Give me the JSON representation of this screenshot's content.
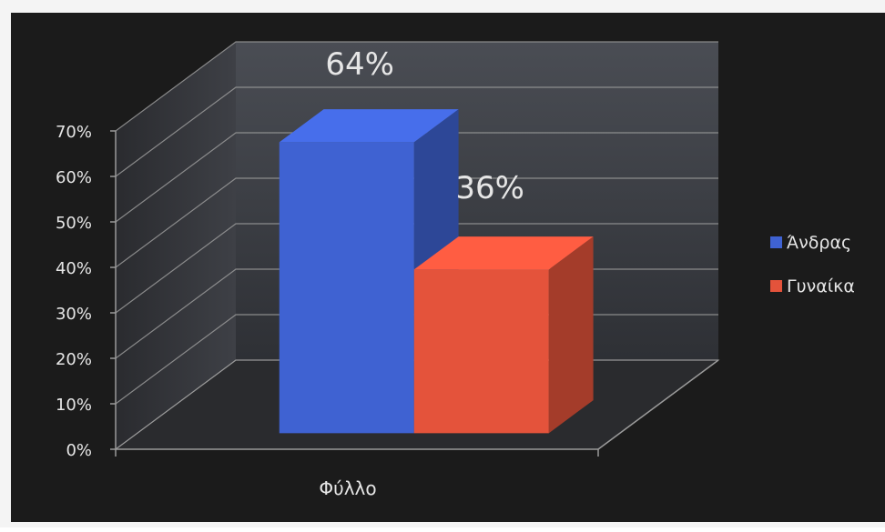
{
  "chart_data": {
    "type": "bar",
    "title": "",
    "xlabel": "Φύλλο",
    "ylabel": "",
    "categories": [
      "Φύλλο"
    ],
    "series": [
      {
        "name": "Άνδρας",
        "values": [
          64
        ],
        "data_label": "64%"
      },
      {
        "name": "Γυναίκα",
        "values": [
          36
        ],
        "data_label": "36%"
      }
    ],
    "ylim": [
      0,
      70
    ],
    "yticks": [
      {
        "value": 0,
        "label": "0%"
      },
      {
        "value": 10,
        "label": "10%"
      },
      {
        "value": 20,
        "label": "20%"
      },
      {
        "value": 30,
        "label": "30%"
      },
      {
        "value": 40,
        "label": "40%"
      },
      {
        "value": 50,
        "label": "50%"
      },
      {
        "value": 60,
        "label": "60%"
      },
      {
        "value": 70,
        "label": "70%"
      }
    ],
    "grid": true,
    "three_d": true,
    "legend_position": "right",
    "colors": {
      "background": "#1b1b1b",
      "wall": "#3a3c42",
      "grid": "#9a9a9a",
      "text": "#e6e6e6",
      "series": [
        "#3f62d2",
        "#e4533b"
      ]
    }
  }
}
